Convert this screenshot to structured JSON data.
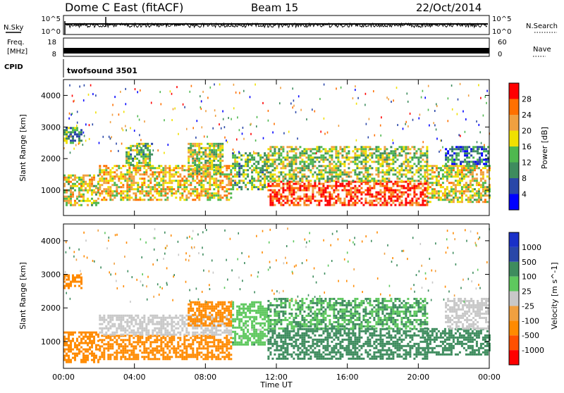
{
  "header": {
    "station": "Dome C East (fitACF)",
    "beam": "Beam 15",
    "date": "22/Oct/2014"
  },
  "strips": {
    "nsky_label": "N.Sky",
    "nsearch_label": "N.Search",
    "nsky_ticks": [
      "10^5",
      "10^0"
    ],
    "freq_label_1": "Freq.",
    "freq_label_2": "[MHz]",
    "freq_ticks": [
      "18",
      "8"
    ],
    "nave_label": "Nave",
    "nave_ticks": [
      "60",
      "0"
    ],
    "cpid_label": "CPID",
    "cpid_value": "twofsound 3501"
  },
  "axes": {
    "ylabel": "Slant Range [km]",
    "xlabel": "Time UT",
    "y_ticks": [
      "4000",
      "3000",
      "2000",
      "1000"
    ],
    "x_ticks": [
      "00:00",
      "04:00",
      "08:00",
      "12:00",
      "16:00",
      "20:00",
      "00:00"
    ]
  },
  "colors": {
    "power": [
      "#0000ff",
      "#2a47a8",
      "#3e8c5e",
      "#4fb84f",
      "#f0e000",
      "#f0a040",
      "#ff7000",
      "#ff0000"
    ],
    "velocity": [
      "#ff0000",
      "#ff5000",
      "#ff8a00",
      "#f0a040",
      "#c8c8c8",
      "#5ec85e",
      "#3e8c5e",
      "#2a47a8",
      "#1a30c8"
    ]
  },
  "chart_data": [
    {
      "type": "heatmap",
      "title": "Power",
      "colorbar_label": "Power [dB]",
      "colorbar_ticks": [
        "28",
        "24",
        "20",
        "16",
        "12",
        "8",
        "4"
      ],
      "x_range_hours": [
        0,
        24
      ],
      "y_range_km": [
        200,
        4500
      ],
      "regions": [
        {
          "t0": 0.0,
          "t1": 2.0,
          "r0": 500,
          "r1": 1500,
          "value": 18
        },
        {
          "t0": 0.0,
          "t1": 1.0,
          "r0": 2500,
          "r1": 3000,
          "value": 12
        },
        {
          "t0": 2.0,
          "t1": 9.5,
          "r0": 700,
          "r1": 1800,
          "value": 20
        },
        {
          "t0": 3.5,
          "t1": 5.0,
          "r0": 1800,
          "r1": 2500,
          "value": 14
        },
        {
          "t0": 7.0,
          "t1": 9.0,
          "r0": 1500,
          "r1": 2500,
          "value": 16
        },
        {
          "t0": 9.5,
          "t1": 11.5,
          "r0": 1000,
          "r1": 2200,
          "value": 14
        },
        {
          "t0": 11.5,
          "t1": 20.5,
          "r0": 500,
          "r1": 1300,
          "value": 28
        },
        {
          "t0": 11.5,
          "t1": 20.5,
          "r0": 1300,
          "r1": 2400,
          "value": 16
        },
        {
          "t0": 20.5,
          "t1": 24.0,
          "r0": 600,
          "r1": 1800,
          "value": 18
        },
        {
          "t0": 21.5,
          "t1": 24.0,
          "r0": 1800,
          "r1": 2400,
          "value": 8
        }
      ]
    },
    {
      "type": "heatmap",
      "title": "Velocity",
      "colorbar_label": "Velocity [m s^-1]",
      "colorbar_ticks": [
        "1000",
        "500",
        "100",
        "25",
        "-25",
        "-100",
        "-500",
        "-1000"
      ],
      "x_range_hours": [
        0,
        24
      ],
      "y_range_km": [
        200,
        4500
      ],
      "regions": [
        {
          "t0": 0.0,
          "t1": 2.0,
          "r0": 400,
          "r1": 1300,
          "value": -300
        },
        {
          "t0": 0.0,
          "t1": 1.0,
          "r0": 2600,
          "r1": 3000,
          "value": -200
        },
        {
          "t0": 2.0,
          "t1": 9.5,
          "r0": 500,
          "r1": 1200,
          "value": -300
        },
        {
          "t0": 2.0,
          "t1": 9.5,
          "r0": 1200,
          "r1": 1800,
          "value": 0
        },
        {
          "t0": 7.0,
          "t1": 9.5,
          "r0": 1500,
          "r1": 2200,
          "value": -200
        },
        {
          "t0": 9.5,
          "t1": 11.5,
          "r0": 900,
          "r1": 2200,
          "value": 60
        },
        {
          "t0": 11.5,
          "t1": 20.5,
          "r0": 500,
          "r1": 1400,
          "value": 300
        },
        {
          "t0": 11.5,
          "t1": 20.5,
          "r0": 1400,
          "r1": 2300,
          "value": 100
        },
        {
          "t0": 20.5,
          "t1": 24.0,
          "r0": 600,
          "r1": 1400,
          "value": 250
        },
        {
          "t0": 21.5,
          "t1": 24.0,
          "r0": 1400,
          "r1": 2300,
          "value": 0
        }
      ]
    }
  ]
}
